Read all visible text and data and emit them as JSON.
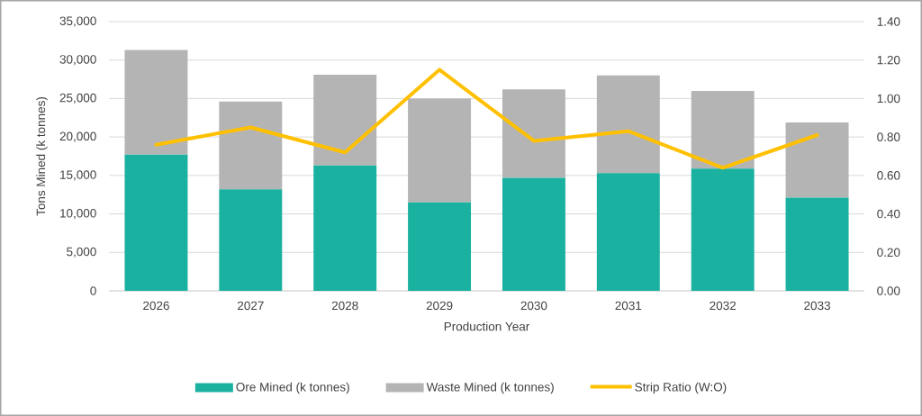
{
  "chart_data": {
    "type": "bar",
    "stacked": true,
    "xlabel": "Production Year",
    "ylabel": "Tons Mined (k tonnes)",
    "categories": [
      "2026",
      "2027",
      "2028",
      "2029",
      "2030",
      "2031",
      "2032",
      "2033"
    ],
    "series": [
      {
        "name": "Ore Mined (k tonnes)",
        "color": "#1ab1a0",
        "values": [
          17700,
          13200,
          16300,
          11500,
          14700,
          15300,
          15900,
          12100
        ]
      },
      {
        "name": "Waste Mined (k tonnes)",
        "color": "#b4b4b4",
        "values": [
          13600,
          11400,
          11800,
          13500,
          11500,
          12700,
          10100,
          9800
        ]
      },
      {
        "name": "Strip Ratio (W:O)",
        "type": "line",
        "axis": "y2",
        "color": "#ffc000",
        "line_style": "solid",
        "values": [
          0.76,
          0.85,
          0.72,
          1.15,
          0.78,
          0.83,
          0.64,
          0.81
        ]
      }
    ],
    "ylim": [
      0,
      35000
    ],
    "yticks": [
      0,
      {
        "value": 5000,
        "label": "5,000"
      },
      {
        "value": 10000,
        "label": "10,000"
      },
      {
        "value": 15000,
        "label": "15,000"
      },
      {
        "value": 20000,
        "label": "20,000"
      },
      {
        "value": 25000,
        "label": "25,000"
      },
      {
        "value": 30000,
        "label": "30,000"
      },
      {
        "value": 35000,
        "label": "35,000"
      }
    ],
    "y2lim": [
      0,
      1.4
    ],
    "y2ticks": [
      {
        "value": 0,
        "label": "0.00"
      },
      {
        "value": 0.2,
        "label": "0.20"
      },
      {
        "value": 0.4,
        "label": "0.40"
      },
      {
        "value": 0.6,
        "label": "0.60"
      },
      {
        "value": 0.8,
        "label": "0.80"
      },
      {
        "value": 1.0,
        "label": "1.00"
      },
      {
        "value": 1.2,
        "label": "1.20"
      },
      {
        "value": 1.4,
        "label": "1.40"
      }
    ],
    "grid": "y",
    "legend": "bottom"
  }
}
